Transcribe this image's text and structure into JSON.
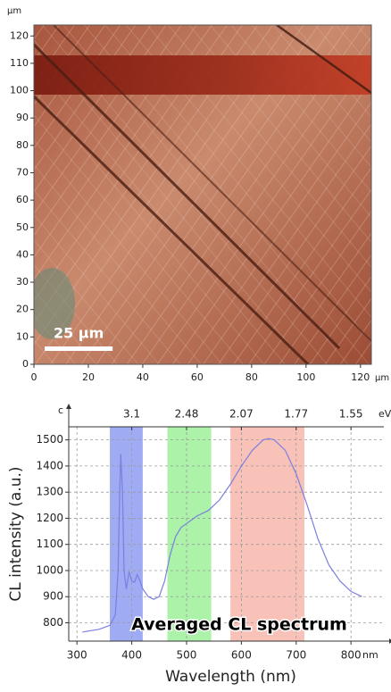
{
  "chart_data": [
    {
      "type": "map",
      "x_unit": "µm",
      "y_unit": "µm",
      "xlim": [
        0,
        124
      ],
      "ylim": [
        0,
        124
      ],
      "xticks": [
        0,
        20,
        40,
        60,
        80,
        100,
        120
      ],
      "yticks": [
        0,
        10,
        20,
        30,
        40,
        50,
        60,
        70,
        80,
        90,
        100,
        110,
        120
      ],
      "scale_bar": {
        "value": 25,
        "label": "25 µm"
      }
    },
    {
      "type": "line",
      "corner_label": "c",
      "x_label": "Wavelength (nm)",
      "x_unit": "nm",
      "y_label": "CL intensity (a.u.)",
      "x2_unit": "eV",
      "annotation": "Averaged CL spectrum",
      "xlim": [
        285,
        860
      ],
      "ylim": [
        730,
        1550
      ],
      "xticks": [
        300,
        400,
        500,
        600,
        700,
        800
      ],
      "yticks": [
        800,
        900,
        1000,
        1100,
        1200,
        1300,
        1400,
        1500
      ],
      "x2ticks": [
        {
          "value": 400,
          "label": "3.1"
        },
        {
          "value": 500,
          "label": "2.48"
        },
        {
          "value": 600,
          "label": "2.07"
        },
        {
          "value": 700,
          "label": "1.77"
        },
        {
          "value": 800,
          "label": "1.55"
        }
      ],
      "grid": true,
      "bands": [
        {
          "range": [
            360,
            420
          ],
          "color": "#8e9cf0"
        },
        {
          "range": [
            465,
            545
          ],
          "color": "#9df09a"
        },
        {
          "range": [
            580,
            715
          ],
          "color": "#f7b7ad"
        }
      ],
      "series": [
        {
          "name": "Averaged CL spectrum",
          "color": "#7b7fe0",
          "x": [
            310,
            340,
            360,
            370,
            375,
            378,
            380,
            383,
            386,
            390,
            395,
            400,
            405,
            410,
            415,
            420,
            430,
            440,
            450,
            460,
            470,
            480,
            490,
            500,
            510,
            520,
            540,
            560,
            580,
            600,
            620,
            640,
            650,
            660,
            680,
            700,
            720,
            740,
            760,
            780,
            800,
            820
          ],
          "values": [
            765,
            775,
            790,
            830,
            1000,
            1300,
            1445,
            1300,
            1000,
            930,
            995,
            960,
            955,
            985,
            960,
            930,
            900,
            890,
            900,
            960,
            1060,
            1130,
            1165,
            1180,
            1195,
            1210,
            1230,
            1270,
            1330,
            1400,
            1460,
            1500,
            1505,
            1500,
            1460,
            1370,
            1250,
            1120,
            1020,
            960,
            920,
            900
          ]
        }
      ]
    }
  ]
}
